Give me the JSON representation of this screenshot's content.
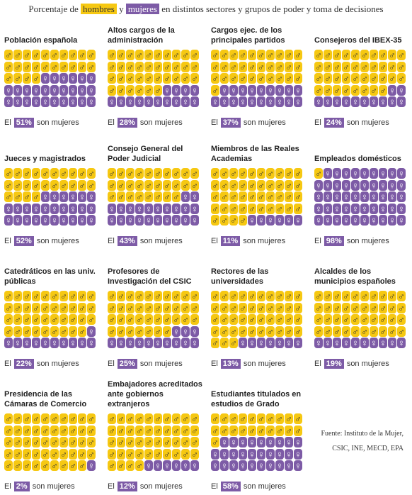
{
  "chart_data": {
    "type": "waffle",
    "title_parts": [
      "Porcentaje de",
      "hombres",
      "y",
      "mujeres",
      "en distintos sectores y grupos de poder y toma de decisiones"
    ],
    "men_color": "#f6c812",
    "women_color": "#7d5ba6",
    "categories": [
      "Población española",
      "Altos cargos de la administración",
      "Cargos ejec. de los principales partidos",
      "Consejeros del IBEX-35",
      "Jueces y magistrados",
      "Consejo General del Poder Judicial",
      "Miembros de las Reales Academias",
      "Empleados domésticos",
      "Catedráticos en las univ. públicas",
      "Profesores de Investigación del CSIC",
      "Rectores de las universidades",
      "Alcaldes de los municipios españoles",
      "Presidencia de las Cámaras de Comercio",
      "Embajadores acreditados ante gobiernos extranjeros",
      "Estudiantes titulados en estudios de Grado"
    ],
    "values": [
      51,
      28,
      37,
      24,
      52,
      43,
      11,
      98,
      22,
      25,
      13,
      19,
      2,
      12,
      58
    ],
    "value_labels": [
      "51%",
      "28%",
      "37%",
      "24%",
      "52%",
      "43%",
      "11%",
      "98%",
      "22%",
      "25%",
      "13%",
      "19%",
      "2%",
      "12%",
      "58%"
    ],
    "label_prefix": "El",
    "label_suffix": "son mujeres",
    "source": [
      "Fuente: Instituto de la Mujer,",
      "CSIC, INE, MECD, EPA"
    ]
  }
}
